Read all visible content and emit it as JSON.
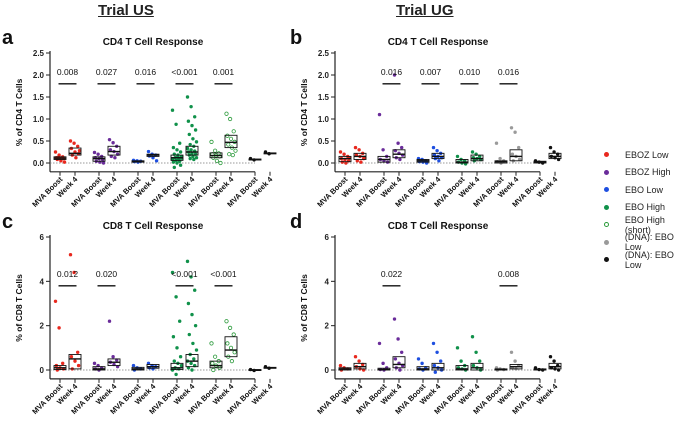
{
  "headers": {
    "left": "Trial US",
    "right": "Trial UG"
  },
  "legend": [
    {
      "label": "EBOZ Low",
      "color": "#e8281e",
      "open": false
    },
    {
      "label": "EBOZ High",
      "color": "#6a2c9a",
      "open": false
    },
    {
      "label": "EBO Low",
      "color": "#1e4fe0",
      "open": false
    },
    {
      "label": "EBO High",
      "color": "#10914a",
      "open": false
    },
    {
      "label": "EBO High (short)",
      "color": "#2a9a3a",
      "open": true
    },
    {
      "label": "(DNA): EBO Low",
      "color": "#9a9a9a",
      "open": false
    },
    {
      "label": "(DNA): EBO Low",
      "color": "#111111",
      "open": false
    }
  ],
  "chart_data": [
    {
      "panel": "a",
      "type": "scatter",
      "title": "CD4 T Cell Response",
      "ylabel": "% of CD4 T Cells",
      "ylim": [
        -0.2,
        2.5
      ],
      "yticks": [
        "0.0",
        "0.5",
        "1.0",
        "1.5",
        "2.0",
        "2.5"
      ],
      "ytick_values": [
        0,
        0.5,
        1,
        1.5,
        2,
        2.5
      ],
      "categories": [
        "MVA Boost",
        "Week 4",
        "MVA Boost",
        "Week 4",
        "MVA Boost",
        "Week 4",
        "MVA Boost",
        "Week 4",
        "MVA Boost",
        "Week 4",
        "MVA Boost",
        "Week 4"
      ],
      "colors": [
        0,
        0,
        1,
        1,
        2,
        2,
        3,
        3,
        4,
        4,
        6,
        6
      ],
      "groups": [
        {
          "median": 0.11,
          "q1": 0.08,
          "q3": 0.14,
          "points": [
            0.25,
            0.18,
            0.14,
            0.12,
            0.11,
            0.1,
            0.08,
            0.05,
            0.02,
            0.12
          ]
        },
        {
          "median": 0.22,
          "q1": 0.18,
          "q3": 0.34,
          "points": [
            0.5,
            0.45,
            0.38,
            0.33,
            0.25,
            0.21,
            0.18,
            0.12,
            0.28
          ]
        },
        {
          "median": 0.1,
          "q1": 0.04,
          "q3": 0.14,
          "points": [
            0.24,
            0.2,
            0.15,
            0.12,
            0.1,
            0.08,
            0.04,
            0.02,
            0.0
          ]
        },
        {
          "median": 0.26,
          "q1": 0.18,
          "q3": 0.38,
          "points": [
            0.53,
            0.46,
            0.38,
            0.3,
            0.26,
            0.2,
            0.15,
            0.12
          ]
        },
        {
          "median": 0.04,
          "q1": 0.02,
          "q3": 0.05,
          "points": [
            0.06,
            0.05,
            0.04,
            0.03,
            0.02
          ]
        },
        {
          "median": 0.18,
          "q1": 0.15,
          "q3": 0.2,
          "points": [
            0.26,
            0.2,
            0.18,
            0.16,
            0.12,
            0.05
          ]
        },
        {
          "median": 0.12,
          "q1": 0.06,
          "q3": 0.18,
          "points": [
            1.2,
            0.88,
            0.45,
            0.35,
            0.3,
            0.25,
            0.2,
            0.18,
            0.15,
            0.12,
            0.1,
            0.08,
            0.06,
            0.04,
            0.02,
            0.0,
            -0.05,
            -0.1,
            0.14,
            0.11
          ]
        },
        {
          "median": 0.25,
          "q1": 0.18,
          "q3": 0.38,
          "points": [
            1.5,
            1.28,
            1.05,
            0.95,
            0.85,
            0.75,
            0.65,
            0.55,
            0.48,
            0.42,
            0.38,
            0.33,
            0.3,
            0.27,
            0.25,
            0.22,
            0.2,
            0.18,
            0.15,
            0.12,
            0.1,
            0.08
          ]
        },
        {
          "median": 0.17,
          "q1": 0.12,
          "q3": 0.23,
          "points": [
            0.48,
            0.28,
            0.22,
            0.2,
            0.17,
            0.15,
            0.12,
            0.05,
            0.0
          ]
        },
        {
          "median": 0.47,
          "q1": 0.35,
          "q3": 0.63,
          "points": [
            1.12,
            1.0,
            0.72,
            0.62,
            0.55,
            0.48,
            0.42,
            0.35,
            0.28,
            0.2,
            0.18
          ]
        },
        {
          "median": 0.08,
          "q1": 0.07,
          "q3": 0.09,
          "points": [
            0.1,
            0.07
          ]
        },
        {
          "median": 0.22,
          "q1": 0.21,
          "q3": 0.23,
          "points": [
            0.25,
            0.21
          ]
        }
      ],
      "pvalues": [
        {
          "pair": 0,
          "label": "0.008"
        },
        {
          "pair": 1,
          "label": "0.027"
        },
        {
          "pair": 2,
          "label": "0.016"
        },
        {
          "pair": 3,
          "label": "<0.001"
        },
        {
          "pair": 4,
          "label": "0.001"
        }
      ],
      "pvalue_y": 1.8
    },
    {
      "panel": "b",
      "type": "scatter",
      "title": "CD4 T Cell Response",
      "ylabel": "% of CD4 T Cells",
      "ylim": [
        -0.2,
        2.5
      ],
      "yticks": [
        "0.0",
        "0.5",
        "1.0",
        "1.5",
        "2.0",
        "2.5"
      ],
      "ytick_values": [
        0,
        0.5,
        1,
        1.5,
        2,
        2.5
      ],
      "categories": [
        "MVA Boost",
        "Week 4",
        "MVA Boost",
        "Week 4",
        "MVA Boost",
        "Week 4",
        "MVA Boost",
        "Week 4",
        "MVA Boost",
        "Week 4",
        "MVA Boost",
        "Week 4"
      ],
      "colors": [
        0,
        0,
        1,
        1,
        2,
        2,
        3,
        3,
        5,
        5,
        6,
        6
      ],
      "groups": [
        {
          "median": 0.1,
          "q1": 0.03,
          "q3": 0.15,
          "points": [
            0.25,
            0.2,
            0.15,
            0.1,
            0.08,
            0.05,
            0.02,
            0.0,
            0.12
          ]
        },
        {
          "median": 0.15,
          "q1": 0.08,
          "q3": 0.22,
          "points": [
            0.35,
            0.3,
            0.22,
            0.18,
            0.15,
            0.1,
            0.05,
            0.02,
            0.12
          ]
        },
        {
          "median": 0.08,
          "q1": 0.02,
          "q3": 0.15,
          "points": [
            1.1,
            0.3,
            0.15,
            0.08,
            0.05,
            0.02
          ]
        },
        {
          "median": 0.2,
          "q1": 0.12,
          "q3": 0.3,
          "points": [
            2.0,
            0.45,
            0.35,
            0.28,
            0.22,
            0.18,
            0.12,
            0.08
          ]
        },
        {
          "median": 0.05,
          "q1": 0.02,
          "q3": 0.08,
          "points": [
            0.1,
            0.08,
            0.05,
            0.03,
            0.02,
            0.0
          ]
        },
        {
          "median": 0.15,
          "q1": 0.1,
          "q3": 0.22,
          "points": [
            0.35,
            0.28,
            0.22,
            0.18,
            0.15,
            0.12,
            0.1,
            0.05
          ]
        },
        {
          "median": 0.02,
          "q1": 0.0,
          "q3": 0.08,
          "points": [
            0.15,
            0.08,
            0.05,
            0.02,
            0.0,
            -0.02
          ]
        },
        {
          "median": 0.1,
          "q1": 0.05,
          "q3": 0.18,
          "points": [
            0.25,
            0.2,
            0.15,
            0.12,
            0.1,
            0.08,
            0.05
          ]
        },
        {
          "median": 0.03,
          "q1": 0.0,
          "q3": 0.05,
          "points": [
            0.45,
            0.1,
            0.05,
            0.03,
            0.0
          ]
        },
        {
          "median": 0.15,
          "q1": 0.05,
          "q3": 0.3,
          "points": [
            0.8,
            0.7,
            0.35,
            0.2,
            0.15,
            0.08,
            0.05
          ]
        },
        {
          "median": 0.02,
          "q1": 0.0,
          "q3": 0.04,
          "points": [
            0.05,
            0.02,
            0.0
          ]
        },
        {
          "median": 0.15,
          "q1": 0.1,
          "q3": 0.22,
          "points": [
            0.35,
            0.25,
            0.2,
            0.15,
            0.12,
            0.08
          ]
        }
      ],
      "pvalues": [
        {
          "pair": 1,
          "label": "0.016"
        },
        {
          "pair": 2,
          "label": "0.007"
        },
        {
          "pair": 3,
          "label": "0.010"
        },
        {
          "pair": 4,
          "label": "0.016"
        }
      ],
      "pvalue_y": 1.8
    },
    {
      "panel": "c",
      "type": "scatter",
      "title": "CD8 T Cell Response",
      "ylabel": "% of CD8 T Cells",
      "ylim": [
        -0.4,
        6
      ],
      "yticks": [
        "0",
        "2",
        "4",
        "6"
      ],
      "ytick_values": [
        0,
        2,
        4,
        6
      ],
      "categories": [
        "MVA Boost",
        "Week 4",
        "MVA Boost",
        "Week 4",
        "MVA Boost",
        "Week 4",
        "MVA Boost",
        "Week 4",
        "MVA Boost",
        "Week 4",
        "MVA Boost",
        "Week 4"
      ],
      "colors": [
        0,
        0,
        1,
        1,
        2,
        2,
        3,
        3,
        4,
        4,
        6,
        6
      ],
      "groups": [
        {
          "median": 0.1,
          "q1": 0.02,
          "q3": 0.2,
          "points": [
            3.1,
            1.9,
            0.3,
            0.2,
            0.1,
            0.05,
            0.0
          ]
        },
        {
          "median": 0.5,
          "q1": 0.05,
          "q3": 0.7,
          "points": [
            5.2,
            4.4,
            0.8,
            0.6,
            0.4,
            0.2,
            0.05
          ]
        },
        {
          "median": 0.05,
          "q1": 0.0,
          "q3": 0.15,
          "points": [
            0.3,
            0.2,
            0.1,
            0.05,
            0.0
          ]
        },
        {
          "median": 0.35,
          "q1": 0.2,
          "q3": 0.5,
          "points": [
            2.2,
            0.6,
            0.45,
            0.35,
            0.25,
            0.15
          ]
        },
        {
          "median": 0.05,
          "q1": 0.0,
          "q3": 0.12,
          "points": [
            0.2,
            0.1,
            0.05,
            0.0
          ]
        },
        {
          "median": 0.15,
          "q1": 0.08,
          "q3": 0.25,
          "points": [
            0.3,
            0.2,
            0.15,
            0.1,
            0.05
          ]
        },
        {
          "median": 0.1,
          "q1": 0.02,
          "q3": 0.3,
          "points": [
            4.4,
            3.3,
            2.2,
            1.5,
            1.0,
            0.6,
            0.4,
            0.3,
            0.2,
            0.1,
            0.05,
            0.0,
            -0.2
          ]
        },
        {
          "median": 0.4,
          "q1": 0.15,
          "q3": 0.7,
          "points": [
            4.9,
            4.2,
            3.6,
            3.0,
            2.5,
            2.0,
            1.6,
            1.2,
            0.9,
            0.7,
            0.5,
            0.4,
            0.3,
            0.2,
            0.1,
            0.0
          ]
        },
        {
          "median": 0.2,
          "q1": 0.1,
          "q3": 0.4,
          "points": [
            1.2,
            0.6,
            0.4,
            0.3,
            0.2,
            0.1,
            0.0
          ]
        },
        {
          "median": 0.9,
          "q1": 0.6,
          "q3": 1.5,
          "points": [
            2.2,
            1.9,
            1.6,
            1.2,
            1.0,
            0.8,
            0.6,
            0.4
          ]
        },
        {
          "median": 0.0,
          "q1": -0.02,
          "q3": 0.02,
          "points": [
            0.02,
            -0.02
          ]
        },
        {
          "median": 0.1,
          "q1": 0.08,
          "q3": 0.12,
          "points": [
            0.15,
            0.08
          ]
        }
      ],
      "pvalues": [
        {
          "pair": 0,
          "label": "0.012"
        },
        {
          "pair": 1,
          "label": "0.020"
        },
        {
          "pair": 3,
          "label": "<0.001"
        },
        {
          "pair": 4,
          "label": "<0.001"
        }
      ],
      "pvalue_y": 3.8
    },
    {
      "panel": "d",
      "type": "scatter",
      "title": "CD8 T Cell Response",
      "ylabel": "% of CD8 T Cells",
      "ylim": [
        -0.4,
        6
      ],
      "yticks": [
        "0",
        "2",
        "4",
        "6"
      ],
      "ytick_values": [
        0,
        2,
        4,
        6
      ],
      "categories": [
        "MVA Boost",
        "Week 4",
        "MVA Boost",
        "Week 4",
        "MVA Boost",
        "Week 4",
        "MVA Boost",
        "Week 4",
        "MVA Boost",
        "Week 4",
        "MVA Boost",
        "Week 4"
      ],
      "colors": [
        0,
        0,
        1,
        1,
        2,
        2,
        3,
        3,
        5,
        5,
        6,
        6
      ],
      "groups": [
        {
          "median": 0.05,
          "q1": 0.0,
          "q3": 0.1,
          "points": [
            0.2,
            0.1,
            0.05,
            0.0
          ]
        },
        {
          "median": 0.15,
          "q1": 0.05,
          "q3": 0.3,
          "points": [
            0.6,
            0.4,
            0.25,
            0.15,
            0.05,
            0.0
          ]
        },
        {
          "median": 0.02,
          "q1": 0.0,
          "q3": 0.08,
          "points": [
            1.2,
            0.3,
            0.1,
            0.02,
            0.0
          ]
        },
        {
          "median": 0.25,
          "q1": 0.1,
          "q3": 0.6,
          "points": [
            2.3,
            1.4,
            0.8,
            0.5,
            0.3,
            0.2,
            0.1,
            0.0
          ]
        },
        {
          "median": 0.05,
          "q1": 0.0,
          "q3": 0.15,
          "points": [
            0.5,
            0.3,
            0.1,
            0.05,
            0.0
          ]
        },
        {
          "median": 0.1,
          "q1": 0.0,
          "q3": 0.3,
          "points": [
            1.2,
            0.8,
            0.4,
            0.2,
            0.1,
            0.0,
            -0.1
          ]
        },
        {
          "median": 0.05,
          "q1": 0.0,
          "q3": 0.2,
          "points": [
            1.0,
            0.4,
            0.2,
            0.1,
            0.05,
            0.0
          ]
        },
        {
          "median": 0.1,
          "q1": 0.0,
          "q3": 0.3,
          "points": [
            1.5,
            0.8,
            0.4,
            0.2,
            0.1,
            0.0
          ]
        },
        {
          "median": 0.02,
          "q1": 0.0,
          "q3": 0.05,
          "points": [
            0.1,
            0.05,
            0.02,
            0.0
          ]
        },
        {
          "median": 0.15,
          "q1": 0.05,
          "q3": 0.25,
          "points": [
            0.8,
            0.4,
            0.2,
            0.1,
            0.05
          ]
        },
        {
          "median": 0.02,
          "q1": 0.0,
          "q3": 0.05,
          "points": [
            0.1,
            0.02,
            0.0
          ]
        },
        {
          "median": 0.15,
          "q1": 0.05,
          "q3": 0.3,
          "points": [
            0.6,
            0.4,
            0.2,
            0.1,
            0.05,
            0.0
          ]
        }
      ],
      "pvalues": [
        {
          "pair": 1,
          "label": "0.022"
        },
        {
          "pair": 4,
          "label": "0.008"
        }
      ],
      "pvalue_y": 3.8
    }
  ]
}
